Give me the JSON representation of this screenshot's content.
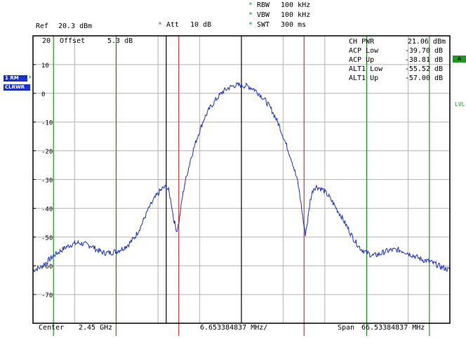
{
  "header": {
    "ref_label": "Ref",
    "ref_value": "20.3 dBm",
    "att_star": "*",
    "att_label": "Att",
    "att_value": "10 dB",
    "rbw_star": "*",
    "rbw_label": "RBW",
    "rbw_value": "100 kHz",
    "vbw_star": "*",
    "vbw_label": "VBW",
    "vbw_value": "100 kHz",
    "swt_star": "*",
    "swt_label": "SWT",
    "swt_value": "300 ms"
  },
  "inside": {
    "offset_label": "Offset",
    "offset_value": "5.3 dB",
    "top_level": "20"
  },
  "left": {
    "trace_badge": "1 RM",
    "mode_badge": "CLRWR",
    "trace_star": "*"
  },
  "right": {
    "a_badge": "A",
    "lvl_label": "LVL"
  },
  "measurements": [
    {
      "label": "CH PWR",
      "value": "21.06 dBm"
    },
    {
      "label": "ACP Low",
      "value": "-39.70 dB"
    },
    {
      "label": "ACP Up",
      "value": "-38.81 dB"
    },
    {
      "label": "ALT1 Low",
      "value": "-55.52 dB"
    },
    {
      "label": "ALT1 Up",
      "value": "-57.00 dB"
    }
  ],
  "footer": {
    "center_label": "Center",
    "center_value": "2.45 GHz",
    "div_value": "6.653384837 MHz/",
    "span_label": "Span",
    "span_value": "66.53384837 MHz"
  },
  "colors": {
    "trace": "#1a2fd6",
    "channel_lines": "#e53030",
    "adjacent_lines": "#1a9a1a",
    "grid": "#b4b4b4",
    "frame": "#000000",
    "center_lines": "#000000"
  },
  "chart_data": {
    "type": "line",
    "title": "",
    "xlabel": "",
    "ylabel": "",
    "x_unit": "MHz offset from center",
    "ylim": [
      -80,
      20
    ],
    "xlim": [
      -33.27,
      33.27
    ],
    "y_ticks": [
      10,
      0,
      -10,
      -20,
      -30,
      -40,
      -50,
      -60,
      -70
    ],
    "grid": true,
    "vertical_markers": {
      "channel_edges_mhz": [
        -10.0,
        10.0
      ],
      "center_lines_mhz": [
        -12.0,
        0.0
      ],
      "adjacent_edges_mhz": [
        -30.0,
        -20.0,
        20.0,
        30.0
      ]
    },
    "series": [
      {
        "values": [
          [
            -33.27,
            -61.5
          ],
          [
            -32.0,
            -60.5
          ],
          [
            -31.0,
            -58.5
          ],
          [
            -30.0,
            -56.5
          ],
          [
            -29.0,
            -55.0
          ],
          [
            -28.0,
            -53.5
          ],
          [
            -27.0,
            -52.5
          ],
          [
            -26.0,
            -52.0
          ],
          [
            -25.0,
            -52.5
          ],
          [
            -24.0,
            -53.0
          ],
          [
            -23.0,
            -54.5
          ],
          [
            -22.0,
            -55.5
          ],
          [
            -21.0,
            -55.5
          ],
          [
            -20.0,
            -55.0
          ],
          [
            -19.0,
            -54.0
          ],
          [
            -18.0,
            -52.5
          ],
          [
            -17.0,
            -50.0
          ],
          [
            -16.0,
            -46.0
          ],
          [
            -15.0,
            -41.0
          ],
          [
            -14.0,
            -37.0
          ],
          [
            -13.0,
            -34.0
          ],
          [
            -12.5,
            -33.0
          ],
          [
            -12.0,
            -32.5
          ],
          [
            -11.6,
            -34.0
          ],
          [
            -11.2,
            -38.0
          ],
          [
            -10.8,
            -44.0
          ],
          [
            -10.3,
            -48.0
          ],
          [
            -9.9,
            -44.0
          ],
          [
            -9.5,
            -37.0
          ],
          [
            -9.0,
            -31.0
          ],
          [
            -8.0,
            -22.0
          ],
          [
            -7.0,
            -15.0
          ],
          [
            -6.0,
            -9.0
          ],
          [
            -5.0,
            -5.0
          ],
          [
            -4.0,
            -2.0
          ],
          [
            -3.0,
            0.5
          ],
          [
            -2.0,
            2.0
          ],
          [
            -1.0,
            2.8
          ],
          [
            0.0,
            2.8
          ],
          [
            1.0,
            2.5
          ],
          [
            2.0,
            1.5
          ],
          [
            3.0,
            -0.5
          ],
          [
            4.0,
            -3.0
          ],
          [
            5.0,
            -6.5
          ],
          [
            6.0,
            -11.0
          ],
          [
            7.0,
            -17.0
          ],
          [
            8.0,
            -23.0
          ],
          [
            9.0,
            -31.0
          ],
          [
            9.5,
            -38.0
          ],
          [
            9.9,
            -45.0
          ],
          [
            10.2,
            -49.0
          ],
          [
            10.6,
            -44.0
          ],
          [
            11.0,
            -37.0
          ],
          [
            11.5,
            -33.0
          ],
          [
            12.0,
            -32.5
          ],
          [
            13.0,
            -33.5
          ],
          [
            14.0,
            -36.0
          ],
          [
            15.0,
            -39.5
          ],
          [
            16.0,
            -43.0
          ],
          [
            17.0,
            -47.0
          ],
          [
            18.0,
            -51.0
          ],
          [
            19.0,
            -54.0
          ],
          [
            20.0,
            -55.5
          ],
          [
            21.0,
            -56.5
          ],
          [
            22.0,
            -56.0
          ],
          [
            23.0,
            -55.0
          ],
          [
            24.0,
            -54.5
          ],
          [
            25.0,
            -54.5
          ],
          [
            26.0,
            -55.0
          ],
          [
            27.0,
            -56.0
          ],
          [
            28.0,
            -57.0
          ],
          [
            29.0,
            -58.0
          ],
          [
            30.0,
            -58.5
          ],
          [
            31.0,
            -59.5
          ],
          [
            32.0,
            -60.5
          ],
          [
            33.27,
            -61.5
          ]
        ]
      }
    ]
  }
}
